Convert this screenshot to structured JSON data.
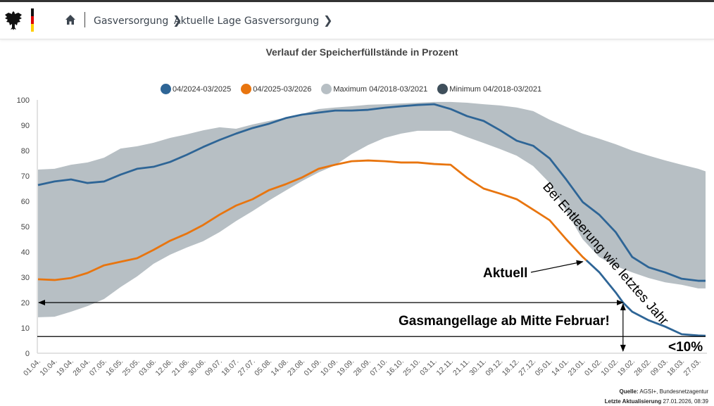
{
  "header": {
    "breadcrumb": [
      {
        "label": "Gasversorgung"
      },
      {
        "label": "Aktuelle Lage Gasversorgung"
      }
    ],
    "icons": {
      "logo": "federal-eagle-icon",
      "home": "home-icon",
      "chevron": "chevron-right-icon"
    },
    "flag_colors": [
      "#000000",
      "#dd0000",
      "#ffce00"
    ]
  },
  "chart_data": {
    "type": "area",
    "title": "Verlauf der Speicherfüllstände in Prozent",
    "xlabel": "",
    "ylabel": "",
    "ylim": [
      0,
      100
    ],
    "yticks": [
      0,
      10,
      20,
      30,
      40,
      50,
      60,
      70,
      80,
      90,
      100
    ],
    "grid": false,
    "legend_position": "top-center",
    "x_day_range": [
      0,
      364
    ],
    "categories": [
      "01.04.",
      "10.04.",
      "19.04.",
      "28.04.",
      "07.05.",
      "16.05.",
      "25.05.",
      "03.06.",
      "12.06.",
      "21.06.",
      "30.06.",
      "09.07.",
      "18.07.",
      "27.07.",
      "05.08.",
      "14.08.",
      "23.08.",
      "01.09.",
      "10.09.",
      "19.09.",
      "28.09.",
      "07.10.",
      "16.10.",
      "25.10.",
      "03.11.",
      "12.11.",
      "21.11.",
      "30.11.",
      "09.12.",
      "18.12.",
      "27.12.",
      "05.01.",
      "14.01.",
      "23.01.",
      "01.02.",
      "10.02.",
      "19.02.",
      "28.02.",
      "09.03.",
      "18.03.",
      "27.03."
    ],
    "category_days": [
      0,
      9,
      18,
      27,
      36,
      45,
      54,
      63,
      72,
      81,
      90,
      99,
      108,
      117,
      126,
      135,
      144,
      153,
      162,
      171,
      180,
      189,
      198,
      207,
      216,
      225,
      234,
      243,
      252,
      261,
      270,
      279,
      288,
      297,
      306,
      315,
      324,
      333,
      342,
      351,
      360
    ],
    "series": [
      {
        "name": "04/2024-03/2025",
        "color": "#2e6596",
        "values": [
          66.4,
          67.8,
          68.6,
          67.2,
          67.8,
          70.5,
          72.8,
          73.6,
          75.5,
          78.3,
          81.4,
          84.2,
          86.7,
          88.9,
          90.6,
          92.8,
          94.2,
          95.0,
          95.8,
          95.8,
          96.1,
          96.9,
          97.5,
          98.0,
          98.3,
          96.4,
          93.6,
          91.7,
          88.0,
          83.9,
          81.9,
          76.9,
          68.6,
          59.7,
          54.7,
          47.8,
          38.0,
          33.9,
          31.9,
          29.4,
          28.6
        ]
      },
      {
        "name": "04/2025-03/2026",
        "color": "#e8750f",
        "values": [
          29.2,
          28.9,
          29.7,
          31.7,
          34.7,
          36.1,
          37.5,
          40.8,
          44.4,
          47.2,
          50.6,
          54.7,
          58.3,
          60.8,
          64.4,
          66.7,
          69.4,
          72.8,
          74.4,
          75.8,
          76.1,
          75.8,
          75.3,
          75.3,
          74.7,
          74.4,
          69.2,
          65.0,
          63.0,
          60.8,
          56.7,
          52.5,
          45.0,
          38.0
        ],
        "end": {
          "day": 299,
          "value": 36.7
        }
      },
      {
        "name": "Maximum 04/2018-03/2021",
        "color": "#b7bfc4",
        "values": [
          72.5,
          72.8,
          74.4,
          75.3,
          77.2,
          80.8,
          81.7,
          83.1,
          85.0,
          86.4,
          88.0,
          89.2,
          88.6,
          90.3,
          91.7,
          93.0,
          94.4,
          96.4,
          97.0,
          97.5,
          98.1,
          98.3,
          98.6,
          98.9,
          99.2,
          99.2,
          98.9,
          98.3,
          97.8,
          97.0,
          95.6,
          92.2,
          89.4,
          86.7,
          84.7,
          82.5,
          80.0,
          78.0,
          76.1,
          74.4,
          72.8
        ]
      },
      {
        "name": "Minimum 04/2018-03/2021",
        "color": "#3f4f5b",
        "values": [
          14.2,
          14.4,
          16.4,
          18.6,
          21.4,
          26.1,
          30.3,
          35.3,
          38.9,
          41.7,
          44.2,
          47.8,
          52.2,
          56.1,
          60.3,
          64.2,
          68.0,
          71.4,
          74.2,
          78.6,
          82.2,
          85.0,
          86.7,
          87.8,
          87.8,
          87.8,
          85.3,
          83.0,
          80.6,
          78.0,
          73.9,
          67.2,
          56.1,
          45.0,
          38.0,
          34.4,
          31.9,
          29.7,
          28.0,
          27.0,
          25.6
        ]
      },
      {
        "name": "Projektion (Entleerung wie letztes Jahr)",
        "color": "#2e6596",
        "points": [
          [
            299,
            36.7
          ],
          [
            306,
            32.0
          ],
          [
            315,
            24.0
          ],
          [
            319,
            20.0
          ],
          [
            324,
            16.4
          ],
          [
            333,
            13.0
          ],
          [
            342,
            10.5
          ],
          [
            351,
            7.5
          ],
          [
            360,
            7.0
          ],
          [
            364,
            6.9
          ]
        ]
      }
    ],
    "annotations": {
      "aktuell": "Aktuell",
      "projection_label": "Bei Entleerung wie letztes Jahr",
      "shortage": "Gasmangellage ab Mitte Februar!",
      "threshold_label": "<10%",
      "threshold_value": 6.6,
      "arrow_level": 20,
      "arrow_day": 319
    }
  },
  "footer": {
    "source_label": "Quelle:",
    "source_value": "AGSI+, Bundesnetzagentur",
    "updated_label": "Letzte Aktualisierung",
    "updated_value": "27.01.2026, 08:39"
  }
}
